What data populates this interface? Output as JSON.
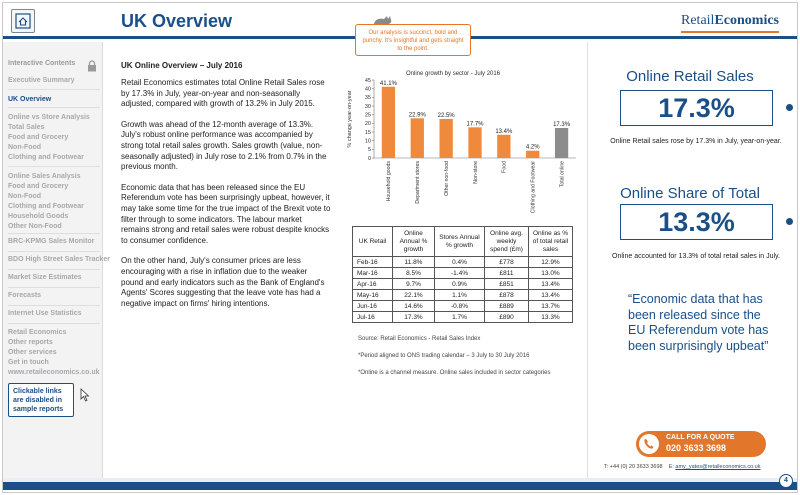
{
  "header": {
    "title": "UK Overview",
    "brand_part1": "Retail",
    "brand_part2": "Economics",
    "callout": "Our analysis is succinct, bold and punchy. It's insightful and gets straight to the point."
  },
  "sidebar": {
    "items": [
      {
        "label": "Interactive Contents",
        "style": "head"
      },
      {
        "label": "Executive Summary",
        "style": "normal"
      },
      {
        "label": "UK Overview",
        "style": "active"
      },
      {
        "label": "Online vs Store Analysis",
        "style": "normal"
      },
      {
        "label": "Total Sales",
        "style": "normal"
      },
      {
        "label": "Food and Grocery",
        "style": "normal"
      },
      {
        "label": "Non-Food",
        "style": "normal"
      },
      {
        "label": "Clothing and Footwear",
        "style": "normal"
      },
      {
        "label": "Online Sales Analysis",
        "style": "normal"
      },
      {
        "label": "Food and Grocery",
        "style": "normal"
      },
      {
        "label": "Non-Food",
        "style": "normal"
      },
      {
        "label": "Clothing and Footwear",
        "style": "normal"
      },
      {
        "label": "Household Goods",
        "style": "normal"
      },
      {
        "label": "Other Non-Food",
        "style": "normal"
      },
      {
        "label": "BRC-KPMG Sales Monitor",
        "style": "normal"
      },
      {
        "label": "BDO High Street Sales Tracker",
        "style": "normal"
      },
      {
        "label": "Market Size Estimates",
        "style": "normal"
      },
      {
        "label": "Forecasts",
        "style": "normal"
      },
      {
        "label": "Internet Use Statistics",
        "style": "normal"
      },
      {
        "label": "Retail Economics",
        "style": "normal"
      },
      {
        "label": "Other reports",
        "style": "normal"
      },
      {
        "label": "Other services",
        "style": "normal"
      },
      {
        "label": "Get in touch",
        "style": "normal"
      },
      {
        "label": "www.retaileconomics.co.uk",
        "style": "normal"
      }
    ],
    "note": "Clickable links are disabled in sample reports"
  },
  "article": {
    "title": "UK Online Overview – July 2016",
    "paragraphs": [
      "Retail Economics estimates total Online Retail Sales rose by 17.3% in July, year-on-year and non-seasonally adjusted, compared with growth of 13.2% in July 2015.",
      "Growth was ahead of the 12-month average of 13.3%. July's robust online performance was accompanied by strong total retail sales growth. Sales growth (value, non-seasonally adjusted) in July rose to 2.1% from 0.7% in the previous month.",
      "Economic data that has been released since the EU Referendum vote has been surprisingly upbeat, however, it may take some time for the true impact of the Brexit vote to filter through to some indicators. The labour market remains strong and retail sales were robust despite knocks to consumer confidence.",
      "On the other hand, July's consumer prices are less encouraging with a rise in inflation due to the weaker pound and early indicators such as the Bank of England's Agents' Scores suggesting that the leave vote has had a negative impact on firms' hiring intentions."
    ]
  },
  "chart_data": {
    "type": "bar",
    "title": "Online growth by sector - July 2016",
    "ylabel": "% change year-on-year",
    "xlabel": "",
    "ylim": [
      0,
      45
    ],
    "yticks": [
      0,
      5,
      10,
      15,
      20,
      25,
      30,
      35,
      40,
      45
    ],
    "categories": [
      "Household goods",
      "Department stores",
      "Other non-food",
      "Non-store",
      "Food",
      "Clothing and Footwear",
      "Total online"
    ],
    "values": [
      41.1,
      22.9,
      22.5,
      17.7,
      13.4,
      4.2,
      17.3
    ],
    "value_labels": [
      "41.1%",
      "22.9%",
      "22.5%",
      "17.7%",
      "13.4%",
      "4.2%",
      "17.3%"
    ],
    "colors": [
      "#ef8a3c",
      "#ef8a3c",
      "#ef8a3c",
      "#ef8a3c",
      "#ef8a3c",
      "#ef8a3c",
      "#8c8c8c"
    ],
    "grid": false,
    "legend": "none"
  },
  "table": {
    "headers": [
      "UK Retail",
      "Online Annual % growth",
      "Stores Annual % growth",
      "Online avg. weekly spend (£m)",
      "Online as % of total retail sales"
    ],
    "rows": [
      [
        "Feb-16",
        "11.8%",
        "0.4%",
        "£778",
        "12.9%"
      ],
      [
        "Mar-16",
        "8.5%",
        "-1.4%",
        "£811",
        "13.0%"
      ],
      [
        "Apr-16",
        "9.7%",
        "0.9%",
        "£851",
        "13.4%"
      ],
      [
        "May-16",
        "22.1%",
        "1.1%",
        "£878",
        "13.4%"
      ],
      [
        "Jun-16",
        "14.6%",
        "-0.8%",
        "£889",
        "13.7%"
      ],
      [
        "Jul-16",
        "17.3%",
        "1.7%",
        "£890",
        "13.3%"
      ]
    ]
  },
  "notes": {
    "source": "Source: Retail Economics - Retail Sales Index",
    "period": "*Period aligned to ONS trading calendar – 3 July to 30 July 2016",
    "online": "*Online is a channel measure. Online sales included in sector categories"
  },
  "kpi": {
    "sales_title": "Online Retail Sales",
    "sales_value": "17.3%",
    "sales_desc": "Online Retail sales rose by 17.3% in July, year-on-year.",
    "share_title": "Online Share of Total",
    "share_value": "13.3%",
    "share_desc": "Online accounted for 13.3% of total retail sales in July."
  },
  "quote": "“Economic data that has been released since the EU Referendum vote has been surprisingly upbeat”",
  "cta": {
    "line1": "CALL FOR A QUOTE",
    "line2": "020 3633 3698"
  },
  "contact": {
    "phone": "T: +44 (0) 20 3633 3698",
    "email_label": "E:",
    "email": "amy_yates@retaileconomics.co.uk"
  },
  "page_number": "4"
}
